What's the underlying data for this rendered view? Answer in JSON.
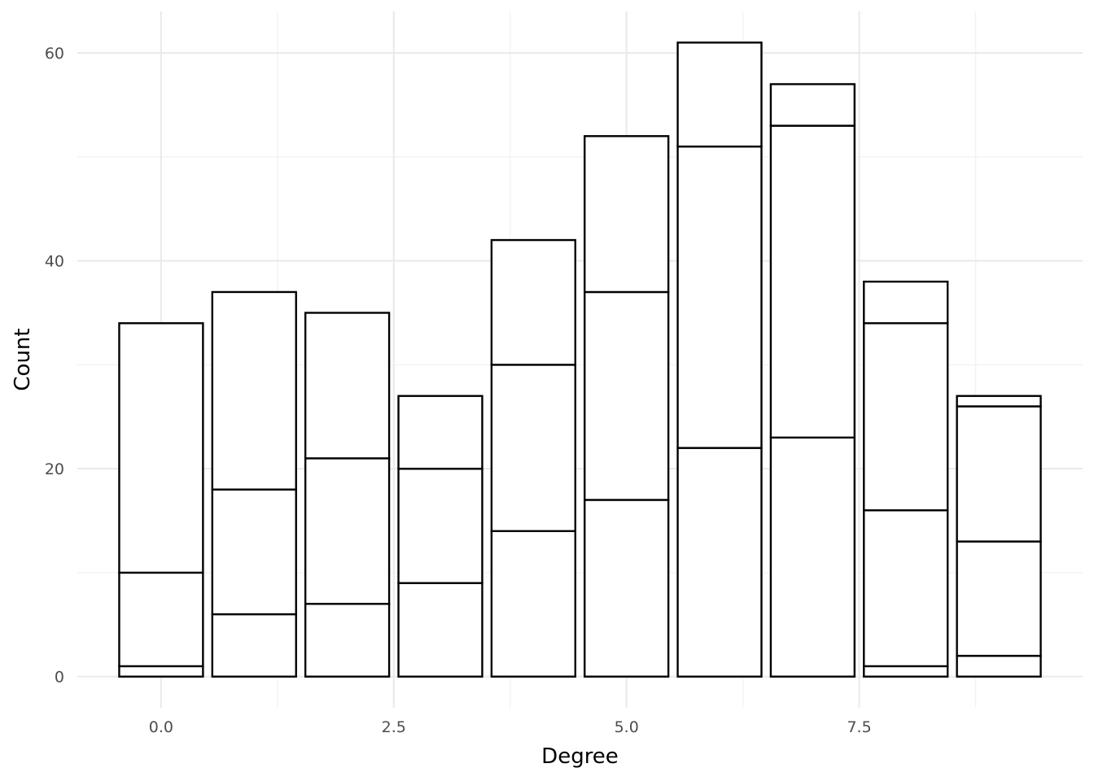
{
  "chart_data": {
    "type": "bar",
    "stacked": true,
    "xlabel": "Degree",
    "ylabel": "Count",
    "xlim": [
      -0.9,
      9.9
    ],
    "ylim": [
      -3,
      64
    ],
    "x_ticks": [
      0.0,
      2.5,
      5.0,
      7.5
    ],
    "x_tick_labels": [
      "0.0",
      "2.5",
      "5.0",
      "7.5"
    ],
    "y_ticks": [
      0,
      20,
      40,
      60
    ],
    "y_tick_labels": [
      "0",
      "20",
      "40",
      "60"
    ],
    "grid": true,
    "bar_fill": "#ffffff",
    "bar_outline": "#000000",
    "x": [
      0,
      1,
      2,
      3,
      4,
      5,
      6,
      7,
      8,
      9
    ],
    "stacks": [
      [
        0,
        1,
        10,
        34
      ],
      [
        0,
        6,
        18,
        37
      ],
      [
        0,
        7,
        21,
        35
      ],
      [
        0,
        9,
        20,
        27
      ],
      [
        0,
        14,
        30,
        42
      ],
      [
        0,
        17,
        37,
        52
      ],
      [
        0,
        22,
        51,
        61
      ],
      [
        0,
        23,
        53,
        57
      ],
      [
        0,
        1,
        16,
        34,
        38
      ],
      [
        0,
        2,
        13,
        26,
        27
      ]
    ]
  }
}
